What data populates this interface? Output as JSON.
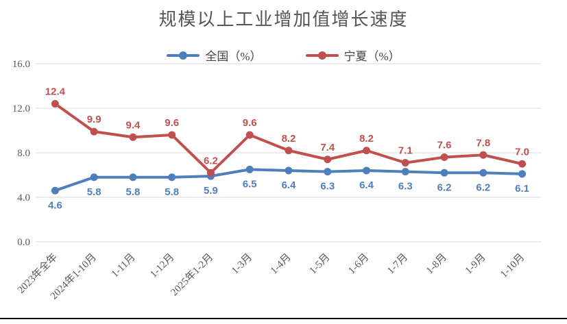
{
  "chart_data": {
    "type": "line",
    "title": "规模以上工业增加值增长速度",
    "categories": [
      "2023年全年",
      "2024年1-10月",
      "1-11月",
      "1-12月",
      "2025年1-2月",
      "1-3月",
      "1-4月",
      "1-5月",
      "1-6月",
      "1-7月",
      "1-8月",
      "1-9月",
      "1-10月"
    ],
    "series": [
      {
        "name": "全国（%）",
        "color": "#4E7EBB",
        "values": [
          4.6,
          5.8,
          5.8,
          5.8,
          5.9,
          6.5,
          6.4,
          6.3,
          6.4,
          6.3,
          6.2,
          6.2,
          6.1
        ],
        "label_position": "below"
      },
      {
        "name": "宁夏（%）",
        "color": "#C0504D",
        "values": [
          12.4,
          9.9,
          9.4,
          9.6,
          6.2,
          9.6,
          8.2,
          7.4,
          8.2,
          7.1,
          7.6,
          7.8,
          7.0
        ],
        "label_position": "above"
      }
    ],
    "y_axis": {
      "min": 0,
      "max": 16,
      "ticks": [
        16.0,
        12.0,
        8.0,
        4.0,
        0.0
      ],
      "tick_format_decimals": 1
    },
    "grid": true,
    "legend_position": "top",
    "gridline_color": "#D9D9D9",
    "axis_text_color": "#595959",
    "title_color": "#555555"
  }
}
